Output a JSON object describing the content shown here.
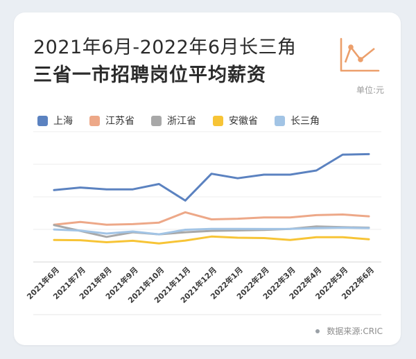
{
  "title_line1": "2021年6月-2022年6月长三角",
  "title_line2": "三省一市招聘岗位平均薪资",
  "unit": "单位:元",
  "source": "数据来源:CRIC",
  "colors": {
    "上海": "#5b82c0",
    "江苏省": "#eda888",
    "浙江省": "#a8a8a8",
    "安徽省": "#f7c436",
    "长三角": "#a2c4e5",
    "icon": "#ec9f6b"
  },
  "chart_data": {
    "type": "line",
    "categories": [
      "2021年6月",
      "2021年7月",
      "2021年8月",
      "2021年9月",
      "2021年10月",
      "2021年11月",
      "2021年12月",
      "2022年1月",
      "2022年2月",
      "2022年3月",
      "2022年4月",
      "2022年5月",
      "2022年6月"
    ],
    "series": [
      {
        "name": "上海",
        "values": [
          11000,
          11280,
          11080,
          11080,
          11680,
          9830,
          12820,
          12320,
          12720,
          12720,
          13180,
          14950,
          15000
        ]
      },
      {
        "name": "江苏省",
        "values": [
          7150,
          7460,
          7150,
          7210,
          7380,
          8530,
          7740,
          7810,
          7950,
          7950,
          8210,
          8280,
          8080
        ]
      },
      {
        "name": "浙江省",
        "values": [
          7100,
          6460,
          5790,
          6310,
          6080,
          6310,
          6460,
          6510,
          6560,
          6690,
          6950,
          6870,
          6820
        ]
      },
      {
        "name": "安徽省",
        "values": [
          5450,
          5420,
          5200,
          5360,
          5070,
          5380,
          5830,
          5700,
          5660,
          5450,
          5760,
          5760,
          5520
        ]
      },
      {
        "name": "长三角",
        "values": [
          6620,
          6490,
          6160,
          6390,
          6080,
          6590,
          6690,
          6690,
          6670,
          6690,
          6770,
          6820,
          6770
        ]
      }
    ],
    "ylim": [
      3000,
      17500
    ],
    "grid": true,
    "legend": "top-left"
  }
}
